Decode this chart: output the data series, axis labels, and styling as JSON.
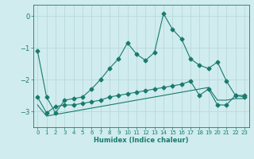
{
  "xlabel": "Humidex (Indice chaleur)",
  "background_color": "#d0ecee",
  "grid_color": "#b8d8da",
  "line_color": "#1a7a6e",
  "xlim": [
    -0.5,
    23.5
  ],
  "ylim": [
    -3.5,
    0.35
  ],
  "yticks": [
    0,
    -1,
    -2,
    -3
  ],
  "xticks": [
    0,
    1,
    2,
    3,
    4,
    5,
    6,
    7,
    8,
    9,
    10,
    11,
    12,
    13,
    14,
    15,
    16,
    17,
    18,
    19,
    20,
    21,
    22,
    23
  ],
  "series1_x": [
    0,
    1,
    2,
    3,
    4,
    5,
    6,
    7,
    8,
    9,
    10,
    11,
    12,
    13,
    14,
    15,
    16,
    17,
    18,
    19,
    20,
    21,
    22,
    23
  ],
  "series1_y": [
    -1.1,
    -2.55,
    -3.05,
    -2.65,
    -2.6,
    -2.55,
    -2.3,
    -2.0,
    -1.65,
    -1.35,
    -0.85,
    -1.2,
    -1.4,
    -1.15,
    0.07,
    -0.42,
    -0.72,
    -1.35,
    -1.55,
    -1.65,
    -1.45,
    -2.05,
    -2.5,
    -2.55
  ],
  "series2_x": [
    0,
    1,
    2,
    3,
    4,
    5,
    6,
    7,
    8,
    9,
    10,
    11,
    12,
    13,
    14,
    15,
    16,
    17,
    18,
    19,
    20,
    21,
    22,
    23
  ],
  "series2_y": [
    -2.55,
    -3.05,
    -2.85,
    -2.8,
    -2.8,
    -2.75,
    -2.7,
    -2.65,
    -2.55,
    -2.5,
    -2.45,
    -2.4,
    -2.35,
    -2.3,
    -2.25,
    -2.2,
    -2.15,
    -2.05,
    -2.5,
    -2.3,
    -2.8,
    -2.8,
    -2.5,
    -2.5
  ],
  "series3_x": [
    0,
    1,
    2,
    3,
    4,
    5,
    6,
    7,
    8,
    9,
    10,
    11,
    12,
    13,
    14,
    15,
    16,
    17,
    18,
    19,
    20,
    21,
    22,
    23
  ],
  "series3_y": [
    -2.8,
    -3.15,
    -3.1,
    -3.05,
    -3.0,
    -2.95,
    -2.9,
    -2.85,
    -2.8,
    -2.75,
    -2.7,
    -2.65,
    -2.6,
    -2.55,
    -2.5,
    -2.45,
    -2.4,
    -2.35,
    -2.3,
    -2.25,
    -2.65,
    -2.65,
    -2.6,
    -2.6
  ]
}
